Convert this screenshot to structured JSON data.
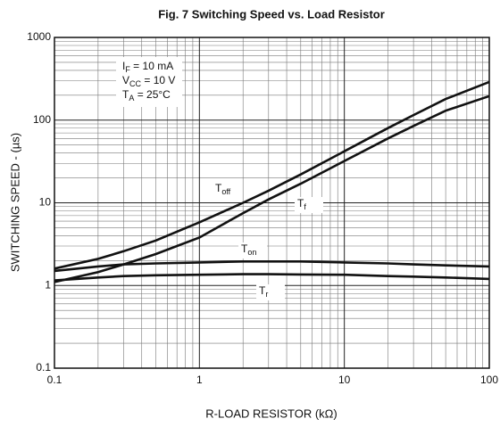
{
  "chart_data": {
    "type": "line",
    "title": "Fig. 7  Switching Speed vs. Load Resistor",
    "xlabel": "R-LOAD RESISTOR (kΩ)",
    "ylabel": "SWITCHING SPEED - (µs)",
    "annotations": [
      "IF = 10 mA",
      "VCC = 10 V",
      "TA = 25°C"
    ],
    "xscale": "log",
    "yscale": "log",
    "grid": true,
    "minor_grid": true,
    "xlim": [
      0.1,
      100
    ],
    "xticks": [
      0.1,
      1,
      10,
      100
    ],
    "ylim": [
      0.1,
      1000
    ],
    "yticks": [
      0.1,
      1,
      10,
      100,
      1000
    ],
    "x": [
      0.1,
      0.2,
      0.3,
      0.5,
      1,
      2,
      3,
      5,
      10,
      20,
      30,
      50,
      100
    ],
    "series": [
      {
        "name": "Toff",
        "color": "#111111",
        "values": [
          1.6,
          2.1,
          2.6,
          3.5,
          5.8,
          10,
          14,
          22,
          42,
          80,
          115,
          180,
          290
        ]
      },
      {
        "name": "Tf",
        "color": "#111111",
        "values": [
          1.1,
          1.45,
          1.8,
          2.4,
          3.8,
          7.5,
          11,
          17,
          32,
          60,
          85,
          130,
          195
        ]
      },
      {
        "name": "Ton",
        "color": "#111111",
        "values": [
          1.5,
          1.7,
          1.8,
          1.85,
          1.9,
          1.95,
          1.95,
          1.95,
          1.9,
          1.85,
          1.8,
          1.75,
          1.7
        ]
      },
      {
        "name": "Tr",
        "color": "#111111",
        "values": [
          1.15,
          1.25,
          1.3,
          1.33,
          1.35,
          1.37,
          1.37,
          1.36,
          1.35,
          1.3,
          1.28,
          1.25,
          1.2
        ]
      }
    ]
  }
}
